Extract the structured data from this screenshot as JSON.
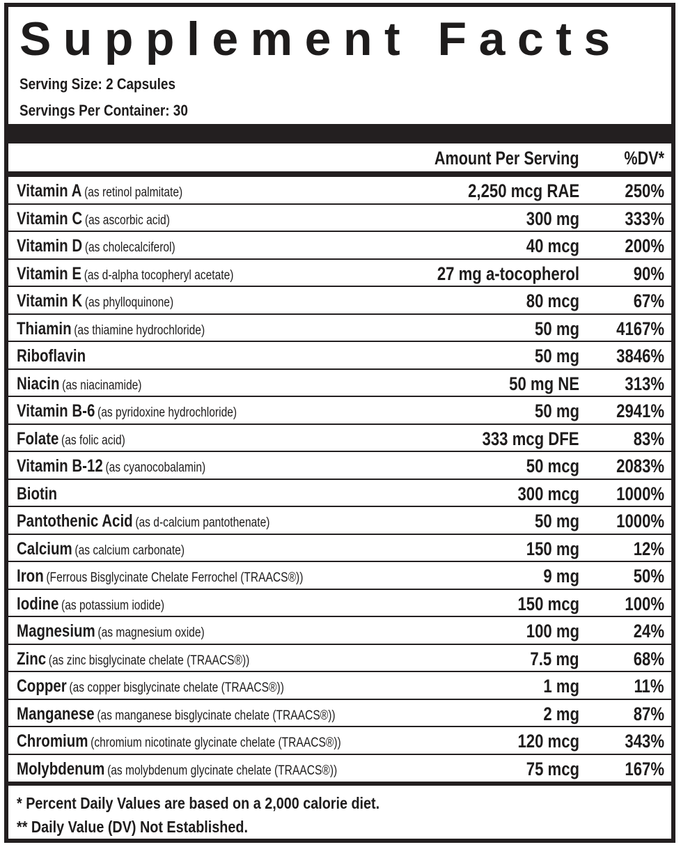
{
  "title": "Supplement Facts",
  "serving_size": "Serving Size: 2 Capsules",
  "servings_per_container": "Servings Per Container: 30",
  "header": {
    "amount": "Amount Per Serving",
    "dv": "%DV*"
  },
  "nutrients": [
    {
      "name": "Vitamin A",
      "source": "(as retinol palmitate)",
      "amount": "2,250 mcg RAE",
      "dv": "250%"
    },
    {
      "name": "Vitamin C",
      "source": "(as ascorbic acid)",
      "amount": "300 mg",
      "dv": "333%"
    },
    {
      "name": "Vitamin D",
      "source": "(as cholecalciferol)",
      "amount": "40 mcg",
      "dv": "200%"
    },
    {
      "name": "Vitamin E",
      "source": "(as d-alpha tocopheryl acetate)",
      "amount": "27 mg a-tocopherol",
      "dv": "90%"
    },
    {
      "name": "Vitamin K",
      "source": "(as phylloquinone)",
      "amount": "80 mcg",
      "dv": "67%"
    },
    {
      "name": "Thiamin",
      "source": "(as thiamine hydrochloride)",
      "amount": "50 mg",
      "dv": "4167%"
    },
    {
      "name": "Riboflavin",
      "source": "",
      "amount": "50 mg",
      "dv": "3846%"
    },
    {
      "name": "Niacin",
      "source": "(as niacinamide)",
      "amount": "50 mg NE",
      "dv": "313%"
    },
    {
      "name": "Vitamin B-6",
      "source": "(as pyridoxine hydrochloride)",
      "amount": "50 mg",
      "dv": "2941%"
    },
    {
      "name": "Folate",
      "source": "(as folic acid)",
      "amount": "333 mcg DFE",
      "dv": "83%"
    },
    {
      "name": "Vitamin B-12",
      "source": "(as cyanocobalamin)",
      "amount": "50 mcg",
      "dv": "2083%"
    },
    {
      "name": "Biotin",
      "source": "",
      "amount": "300 mcg",
      "dv": "1000%"
    },
    {
      "name": "Pantothenic Acid",
      "source": "(as d-calcium pantothenate)",
      "amount": "50 mg",
      "dv": "1000%"
    },
    {
      "name": "Calcium",
      "source": "(as calcium carbonate)",
      "amount": "150 mg",
      "dv": "12%"
    },
    {
      "name": "Iron",
      "source": "(Ferrous Bisglycinate Chelate Ferrochel (TRAACS®))",
      "amount": "9 mg",
      "dv": "50%"
    },
    {
      "name": "Iodine",
      "source": "(as potassium iodide)",
      "amount": "150 mcg",
      "dv": "100%"
    },
    {
      "name": "Magnesium",
      "source": "(as magnesium oxide)",
      "amount": "100 mg",
      "dv": "24%"
    },
    {
      "name": "Zinc",
      "source": "(as zinc bisglycinate chelate (TRAACS®))",
      "amount": "7.5 mg",
      "dv": "68%"
    },
    {
      "name": "Copper",
      "source": "(as copper bisglycinate chelate (TRAACS®))",
      "amount": "1 mg",
      "dv": "11%"
    },
    {
      "name": "Manganese",
      "source": "(as manganese bisglycinate chelate (TRAACS®))",
      "amount": "2 mg",
      "dv": "87%"
    },
    {
      "name": "Chromium",
      "source": "(chromium nicotinate glycinate chelate (TRAACS®))",
      "amount": "120 mcg",
      "dv": "343%"
    },
    {
      "name": "Molybdenum",
      "source": "(as molybdenum glycinate chelate (TRAACS®))",
      "amount": "75 mcg",
      "dv": "167%"
    }
  ],
  "footnotes": [
    "* Percent Daily Values are based on a 2,000 calorie diet.",
    "** Daily Value (DV) Not Established."
  ]
}
